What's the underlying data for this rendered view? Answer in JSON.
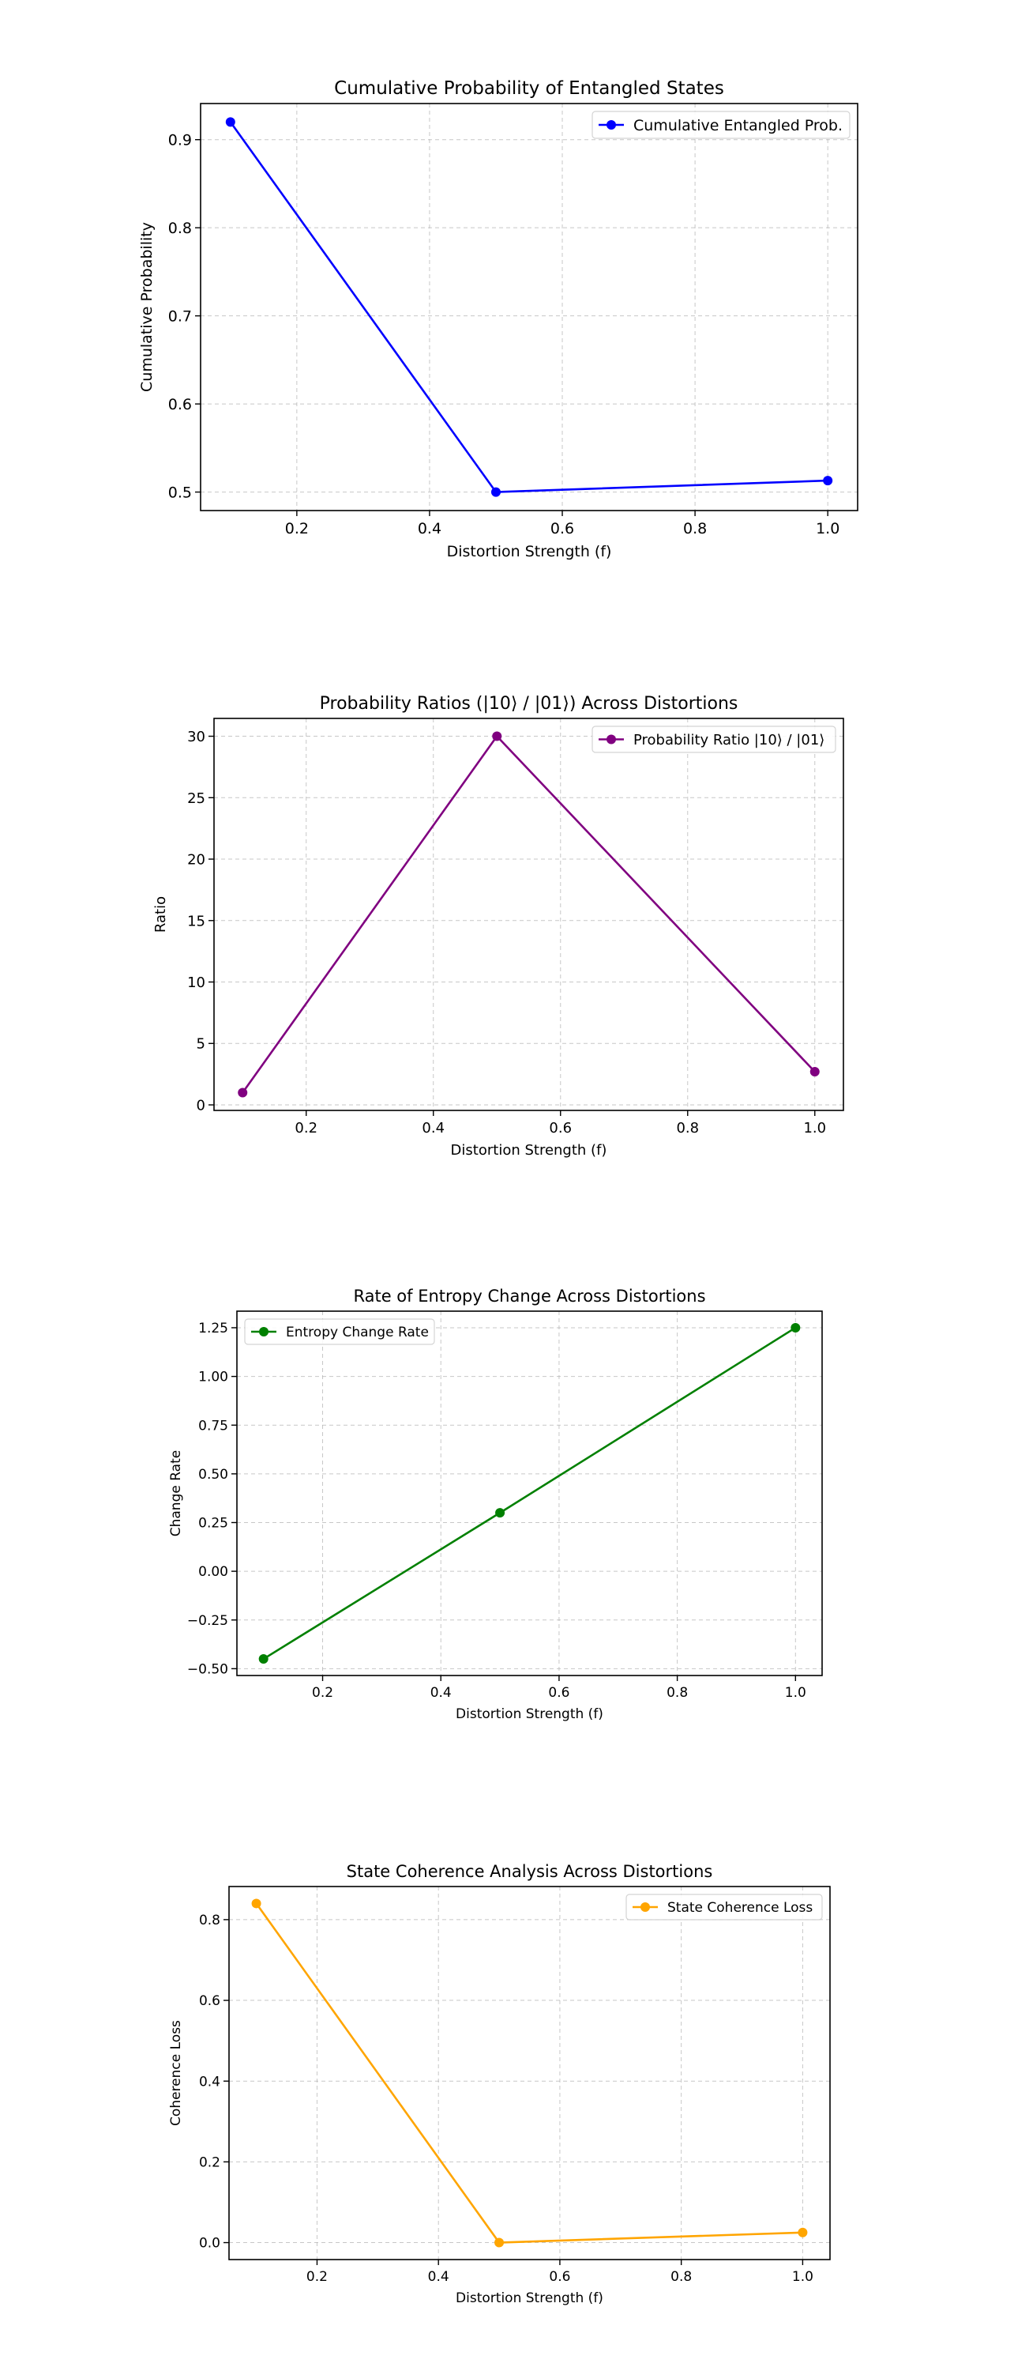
{
  "chart_data": [
    {
      "type": "line",
      "title": "Cumulative Probability of Entangled States",
      "xlabel": "Distortion Strength (f)",
      "ylabel": "Cumulative Probability",
      "x": [
        0.1,
        0.5,
        1.0
      ],
      "series": [
        {
          "name": "Cumulative Entangled Prob.",
          "values": [
            0.92,
            0.5,
            0.513
          ],
          "color": "#0000ff"
        }
      ],
      "xlim": [
        0.055,
        1.045
      ],
      "ylim": [
        0.479,
        0.941
      ],
      "xticks": [
        0.2,
        0.4,
        0.6,
        0.8,
        1.0
      ],
      "xtick_labels": [
        "0.2",
        "0.4",
        "0.6",
        "0.8",
        "1.0"
      ],
      "yticks": [
        0.5,
        0.6,
        0.7,
        0.8,
        0.9
      ],
      "ytick_labels": [
        "0.5",
        "0.6",
        "0.7",
        "0.8",
        "0.9"
      ],
      "grid": true,
      "legend": "upper-right"
    },
    {
      "type": "line",
      "title": "Probability Ratios (|10⟩ / |01⟩) Across Distortions",
      "xlabel": "Distortion Strength (f)",
      "ylabel": "Ratio",
      "x": [
        0.1,
        0.5,
        1.0
      ],
      "series": [
        {
          "name": "Probability Ratio |10⟩ / |01⟩",
          "values": [
            1.0,
            30.0,
            2.7
          ],
          "color": "#800080"
        }
      ],
      "xlim": [
        0.055,
        1.045
      ],
      "ylim": [
        -0.45,
        31.45
      ],
      "xticks": [
        0.2,
        0.4,
        0.6,
        0.8,
        1.0
      ],
      "xtick_labels": [
        "0.2",
        "0.4",
        "0.6",
        "0.8",
        "1.0"
      ],
      "yticks": [
        0,
        5,
        10,
        15,
        20,
        25,
        30
      ],
      "ytick_labels": [
        "0",
        "5",
        "10",
        "15",
        "20",
        "25",
        "30"
      ],
      "grid": true,
      "legend": "upper-right"
    },
    {
      "type": "line",
      "title": "Rate of Entropy Change Across Distortions",
      "xlabel": "Distortion Strength (f)",
      "ylabel": "Change Rate",
      "x": [
        0.1,
        0.5,
        1.0
      ],
      "series": [
        {
          "name": "Entropy Change Rate",
          "values": [
            -0.45,
            0.3,
            1.25
          ],
          "color": "#008000"
        }
      ],
      "xlim": [
        0.055,
        1.045
      ],
      "ylim": [
        -0.535,
        1.335
      ],
      "xticks": [
        0.2,
        0.4,
        0.6,
        0.8,
        1.0
      ],
      "xtick_labels": [
        "0.2",
        "0.4",
        "0.6",
        "0.8",
        "1.0"
      ],
      "yticks": [
        -0.5,
        -0.25,
        0.0,
        0.25,
        0.5,
        0.75,
        1.0,
        1.25
      ],
      "ytick_labels": [
        "−0.50",
        "−0.25",
        "0.00",
        "0.25",
        "0.50",
        "0.75",
        "1.00",
        "1.25"
      ],
      "grid": true,
      "legend": "upper-left"
    },
    {
      "type": "line",
      "title": "State Coherence Analysis Across Distortions",
      "xlabel": "Distortion Strength (f)",
      "ylabel": "Coherence Loss",
      "x": [
        0.1,
        0.5,
        1.0
      ],
      "series": [
        {
          "name": "State Coherence Loss",
          "values": [
            0.84,
            0.0,
            0.025
          ],
          "color": "#ffa500"
        }
      ],
      "xlim": [
        0.055,
        1.045
      ],
      "ylim": [
        -0.042,
        0.882
      ],
      "xticks": [
        0.2,
        0.4,
        0.6,
        0.8,
        1.0
      ],
      "xtick_labels": [
        "0.2",
        "0.4",
        "0.6",
        "0.8",
        "1.0"
      ],
      "yticks": [
        0.0,
        0.2,
        0.4,
        0.6,
        0.8
      ],
      "ytick_labels": [
        "0.0",
        "0.2",
        "0.4",
        "0.6",
        "0.8"
      ],
      "grid": true,
      "legend": "upper-right"
    }
  ]
}
